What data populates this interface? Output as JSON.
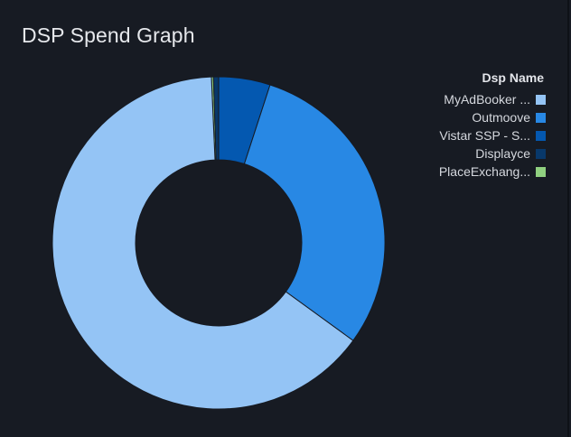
{
  "panel": {
    "title": "DSP Spend Graph"
  },
  "chart_data": {
    "type": "pie",
    "donut": true,
    "title": "DSP Spend Graph",
    "legend_title": "Dsp Name",
    "legend_position": "right",
    "series": [
      {
        "name": "MyAdBooker ...",
        "value": 64.3,
        "color": "#94c4f5"
      },
      {
        "name": "Outmoove",
        "value": 30.0,
        "color": "#2888e4"
      },
      {
        "name": "Vistar SSP - S...",
        "value": 5.0,
        "color": "#0458b0"
      },
      {
        "name": "Displayce",
        "value": 0.5,
        "color": "#08386a"
      },
      {
        "name": "PlaceExchang...",
        "value": 0.2,
        "color": "#90d080"
      }
    ]
  }
}
